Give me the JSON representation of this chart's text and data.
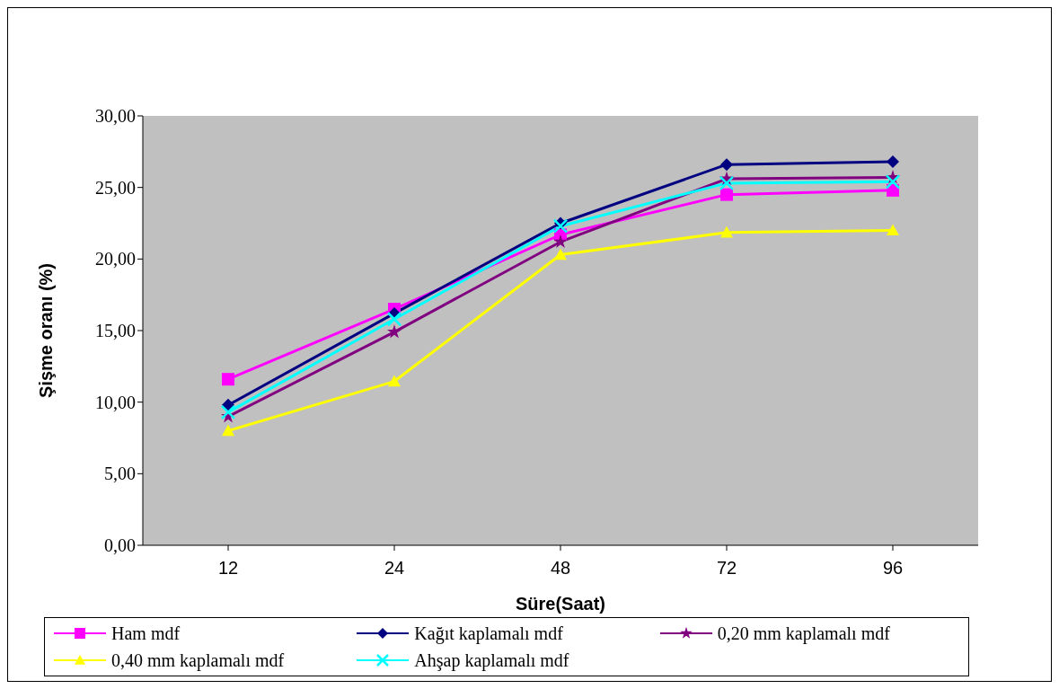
{
  "chart_data": {
    "type": "line",
    "xlabel": "Süre(Saat)",
    "ylabel": "Şişme oranı (%)",
    "categories": [
      "12",
      "24",
      "48",
      "72",
      "96"
    ],
    "series": [
      {
        "name": "Ham mdf",
        "color": "#ff00ff",
        "marker": "square",
        "values": [
          11.6,
          16.5,
          21.7,
          24.5,
          24.8
        ]
      },
      {
        "name": "Kağıt kaplamalı mdf",
        "color": "#000080",
        "marker": "diamond",
        "values": [
          9.8,
          16.2,
          22.5,
          26.6,
          26.8
        ]
      },
      {
        "name": "0,20 mm kaplamalı mdf",
        "color": "#800080",
        "marker": "star",
        "values": [
          9.0,
          14.9,
          21.2,
          25.6,
          25.7
        ]
      },
      {
        "name": "0,40 mm kaplamalı mdf",
        "color": "#ffff00",
        "marker": "triangle",
        "values": [
          8.0,
          11.45,
          20.3,
          21.85,
          22.0
        ]
      },
      {
        "name": "Ahşap kaplamalı mdf",
        "color": "#00ffff",
        "marker": "cross",
        "values": [
          9.3,
          15.8,
          22.3,
          25.3,
          25.4
        ]
      }
    ],
    "ylim": [
      0,
      30
    ],
    "yticks": [
      {
        "value": 0,
        "label": "0,00"
      },
      {
        "value": 5,
        "label": "5,00"
      },
      {
        "value": 10,
        "label": "10,00"
      },
      {
        "value": 15,
        "label": "15,00"
      },
      {
        "value": 20,
        "label": "20,00"
      },
      {
        "value": 25,
        "label": "25,00"
      },
      {
        "value": 30,
        "label": "30,00"
      }
    ],
    "grid": false,
    "legend": "bottom"
  }
}
